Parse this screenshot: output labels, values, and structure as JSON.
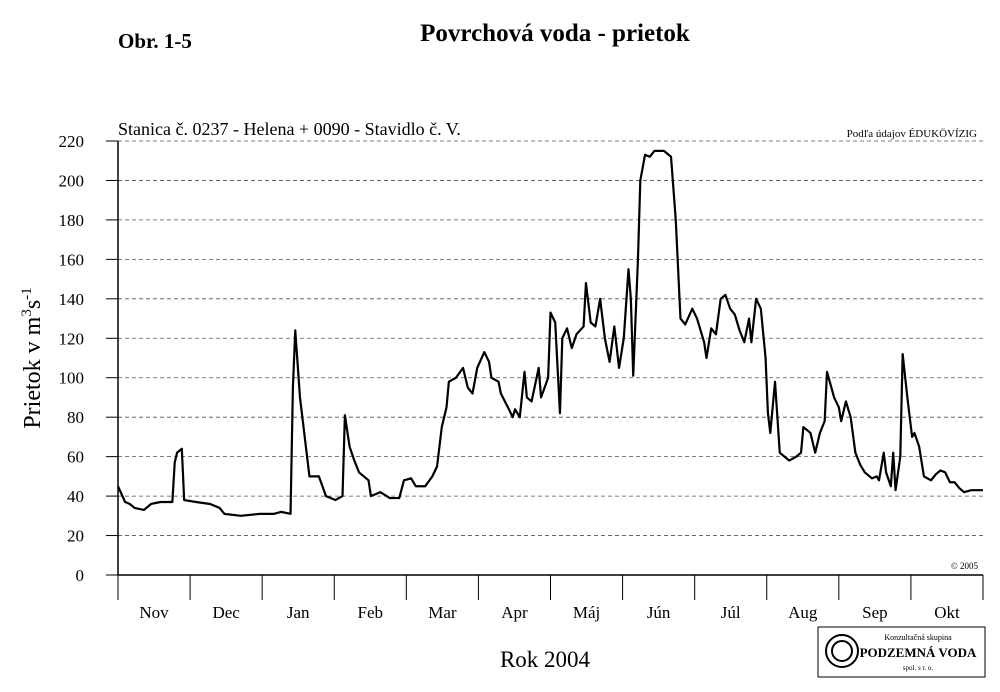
{
  "chart_data": {
    "type": "line",
    "label": "Obr. 1-5",
    "title": "Povrchová voda - prietok",
    "subtitle": "Stanica č. 0237 - Helena + 0090 - Stavidlo č. V.",
    "source": "Podľa údajov ÉDUKÖVÍZIG",
    "copyright": "© 2005",
    "y_label": {
      "text": "Prietok v m",
      "sup1": "3",
      "mid": "s",
      "sup2": "-1"
    },
    "x_label": "Rok 2004",
    "logo": {
      "line1": "Konzultačná skupina",
      "line2": "PODZEMNÁ VODA",
      "line3": "spol. s r. o."
    },
    "categories": [
      "Nov",
      "Dec",
      "Jan",
      "Feb",
      "Mar",
      "Apr",
      "Máj",
      "Jún",
      "Júl",
      "Aug",
      "Sep",
      "Okt"
    ],
    "xlim": [
      0,
      366
    ],
    "ylim": [
      0,
      220
    ],
    "yticks": [
      0,
      20,
      40,
      60,
      80,
      100,
      120,
      140,
      160,
      180,
      200,
      220
    ],
    "grid": true,
    "series": [
      {
        "name": "Prietok",
        "color": "#000000",
        "x": [
          0,
          3,
          5,
          7,
          11,
          14,
          18,
          23,
          24,
          25,
          27,
          28,
          33,
          39,
          43,
          45,
          52,
          60,
          66,
          69,
          73,
          74,
          75,
          77,
          79,
          81,
          85,
          88,
          92,
          95,
          96,
          98,
          100,
          102,
          106,
          107,
          111,
          115,
          119,
          121,
          124,
          126,
          130,
          133,
          135,
          137,
          139,
          140,
          143,
          146,
          148,
          150,
          152,
          155,
          157,
          158,
          161,
          162,
          165,
          167,
          168,
          170,
          172,
          173,
          175,
          178,
          179,
          182,
          183,
          185,
          187,
          188,
          190,
          192,
          194,
          197,
          198,
          200,
          202,
          204,
          206,
          208,
          210,
          212,
          214,
          216,
          217,
          218,
          220,
          221,
          223,
          225,
          227,
          231,
          234,
          236,
          238,
          240,
          243,
          245,
          248,
          249,
          251,
          253,
          255,
          257,
          259,
          261,
          263,
          265,
          267,
          268,
          270,
          272,
          274,
          275,
          276,
          278,
          280,
          282,
          284,
          287,
          289,
          290,
          293,
          295,
          297,
          299,
          300,
          303,
          305,
          306,
          308,
          310,
          312,
          314,
          316,
          319,
          321,
          322,
          324,
          325,
          327,
          328,
          329,
          331,
          332,
          334,
          336,
          337,
          339,
          341,
          344,
          346,
          348,
          350,
          352,
          354,
          356,
          358,
          361,
          366
        ],
        "values": [
          45,
          37,
          36,
          34,
          33,
          36,
          37,
          37,
          57,
          62,
          64,
          38,
          37,
          36,
          34,
          31,
          30,
          31,
          31,
          32,
          31,
          95,
          124,
          90,
          70,
          50,
          50,
          40,
          38,
          40,
          81,
          65,
          58,
          52,
          48,
          40,
          42,
          39,
          39,
          48,
          49,
          45,
          45,
          50,
          55,
          75,
          85,
          98,
          100,
          105,
          95,
          92,
          105,
          113,
          108,
          100,
          98,
          92,
          85,
          80,
          84,
          80,
          103,
          90,
          88,
          105,
          90,
          100,
          133,
          128,
          82,
          120,
          125,
          115,
          122,
          126,
          148,
          128,
          126,
          140,
          120,
          108,
          126,
          105,
          120,
          155,
          140,
          101,
          160,
          200,
          213,
          212,
          215,
          215,
          212,
          180,
          130,
          127,
          135,
          130,
          118,
          110,
          125,
          122,
          140,
          142,
          135,
          132,
          124,
          118,
          130,
          118,
          140,
          135,
          110,
          82,
          72,
          98,
          62,
          60,
          58,
          60,
          62,
          75,
          72,
          62,
          72,
          78,
          103,
          90,
          85,
          78,
          88,
          80,
          62,
          56,
          52,
          49,
          50,
          48,
          62,
          52,
          45,
          62,
          43,
          60,
          112,
          90,
          70,
          72,
          65,
          50,
          48,
          51,
          53,
          52,
          47,
          47,
          44,
          42,
          43,
          43
        ]
      }
    ]
  }
}
